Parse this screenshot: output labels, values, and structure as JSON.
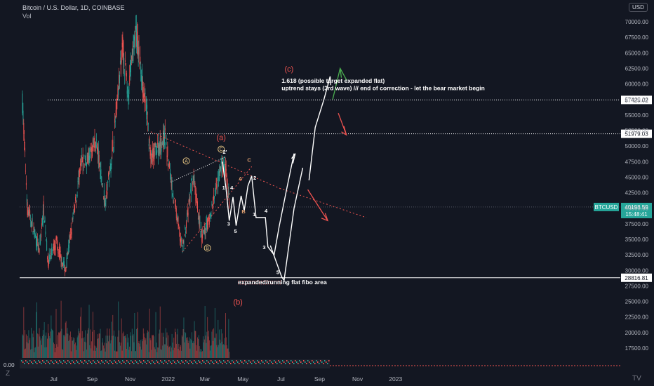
{
  "header": {
    "symbol": "Bitcoin / U.S. Dollar, 1D, COINBASE",
    "volume_label": "Vol",
    "currency": "USD"
  },
  "bottom": {
    "zero_value": "0.00",
    "zoom_icon": "Z",
    "logo_icon": "TV"
  },
  "colors": {
    "background": "#131722",
    "up": "#26a69a",
    "down": "#ef5350",
    "annotation_red": "#ef5350",
    "white": "#ffffff",
    "green_arrow": "#4caf50",
    "current_price_tag": "#26a69a"
  },
  "chart_data": {
    "type": "candlestick",
    "title": "Bitcoin / U.S. Dollar, 1D, COINBASE",
    "x_ticks": [
      "Jul",
      "Sep",
      "Nov",
      "2022",
      "Mar",
      "May",
      "Jul",
      "Sep",
      "Nov",
      "2023"
    ],
    "y_ticks": [
      17500,
      20000,
      22500,
      25000,
      27500,
      30000,
      32500,
      35000,
      37500,
      40000,
      42500,
      45000,
      47500,
      50000,
      52500,
      55000,
      57500,
      60000,
      62500,
      65000,
      67500,
      70000
    ],
    "y_tick_labels": [
      "17500.00",
      "20000.00",
      "22500.00",
      "25000.00",
      "27500.00",
      "30000.00",
      "32500.00",
      "35000.00",
      "37500.00",
      "40000.00",
      "42500.00",
      "45000.00",
      "47500.00",
      "50000.00",
      "52500.00",
      "55000.00",
      "57500.00",
      "60000.00",
      "62500.00",
      "65000.00",
      "67500.00",
      "70000.00"
    ],
    "ylim": [
      15000,
      72000
    ],
    "price_path": [
      {
        "t": "2021-05-12",
        "p": 57000
      },
      {
        "t": "2021-05-20",
        "p": 40000
      },
      {
        "t": "2021-05-26",
        "p": 38000
      },
      {
        "t": "2021-06-08",
        "p": 33000
      },
      {
        "t": "2021-06-15",
        "p": 40000
      },
      {
        "t": "2021-06-22",
        "p": 31500
      },
      {
        "t": "2021-07-05",
        "p": 34500
      },
      {
        "t": "2021-07-20",
        "p": 30000
      },
      {
        "t": "2021-08-14",
        "p": 47000
      },
      {
        "t": "2021-08-28",
        "p": 48500
      },
      {
        "t": "2021-09-07",
        "p": 51000
      },
      {
        "t": "2021-09-21",
        "p": 41000
      },
      {
        "t": "2021-10-01",
        "p": 47000
      },
      {
        "t": "2021-10-20",
        "p": 66000
      },
      {
        "t": "2021-10-28",
        "p": 58500
      },
      {
        "t": "2021-11-10",
        "p": 68500
      },
      {
        "t": "2021-11-28",
        "p": 55000
      },
      {
        "t": "2021-12-04",
        "p": 48000
      },
      {
        "t": "2021-12-27",
        "p": 51500
      },
      {
        "t": "2022-01-10",
        "p": 41500
      },
      {
        "t": "2022-01-24",
        "p": 33500
      },
      {
        "t": "2022-02-10",
        "p": 45000
      },
      {
        "t": "2022-02-24",
        "p": 35000
      },
      {
        "t": "2022-03-10",
        "p": 39000
      },
      {
        "t": "2022-03-29",
        "p": 47500
      },
      {
        "t": "2022-04-04",
        "p": 45500
      },
      {
        "t": "2022-04-10",
        "p": 40200
      }
    ],
    "current_price": {
      "label": "BTCUSD",
      "value": "40198.59",
      "countdown": "15:48:41",
      "y": 40198.59
    },
    "horizontal_levels": [
      {
        "value": 57425.02,
        "label": "57425.02",
        "style": "dotted"
      },
      {
        "value": 51979.03,
        "label": "51979.03",
        "style": "dotted"
      },
      {
        "value": 28816.81,
        "label": "28816.81",
        "style": "solid"
      }
    ],
    "annotations": [
      {
        "text": "(a)",
        "t": "2022-03-27",
        "y": 51000,
        "color": "annotation_red"
      },
      {
        "text": "(b)",
        "t": "2022-04-23",
        "y": 24500,
        "color": "annotation_red"
      },
      {
        "text": "(c)",
        "t": "2022-07-14",
        "y": 62000,
        "color": "annotation_red"
      },
      {
        "text": "1.618 (possible target expanded flat)",
        "t": "2022-07-02",
        "y": 60200,
        "color": "white"
      },
      {
        "text": "uptrend stays (3rd wave) /// end of correction - let the bear market begin",
        "t": "2022-07-02",
        "y": 59000,
        "color": "white"
      },
      {
        "text": "expanded/running flat fibo area",
        "t": "2022-04-23",
        "y": 27800,
        "color": "white"
      }
    ],
    "circled_labels": [
      {
        "text": "A",
        "t": "2022-01-30",
        "y": 47600
      },
      {
        "text": "B",
        "t": "2022-03-05",
        "y": 33600
      },
      {
        "text": "C",
        "t": "2022-03-27",
        "y": 49500
      }
    ],
    "wave_labels": [
      {
        "text": "2'",
        "t": "2022-04-02",
        "y": 48800
      },
      {
        "text": "1",
        "t": "2022-03-31",
        "y": 43000
      },
      {
        "text": "3",
        "t": "2022-04-08",
        "y": 37200
      },
      {
        "text": "4",
        "t": "2022-04-13",
        "y": 43000
      },
      {
        "text": "5",
        "t": "2022-04-19",
        "y": 36000
      },
      {
        "text": "A",
        "t": "2022-04-27",
        "y": 44500
      },
      {
        "text": "B",
        "t": "2022-05-02",
        "y": 39200
      },
      {
        "text": "C",
        "t": "2022-05-11",
        "y": 47500
      },
      {
        "text": "2",
        "t": "2022-05-20",
        "y": 44600
      },
      {
        "text": "1",
        "t": "2022-05-19",
        "y": 38700
      },
      {
        "text": "4",
        "t": "2022-06-07",
        "y": 39300
      },
      {
        "text": "3",
        "t": "2022-06-04",
        "y": 33400
      },
      {
        "text": "5",
        "t": "2022-06-26",
        "y": 29400
      }
    ]
  }
}
